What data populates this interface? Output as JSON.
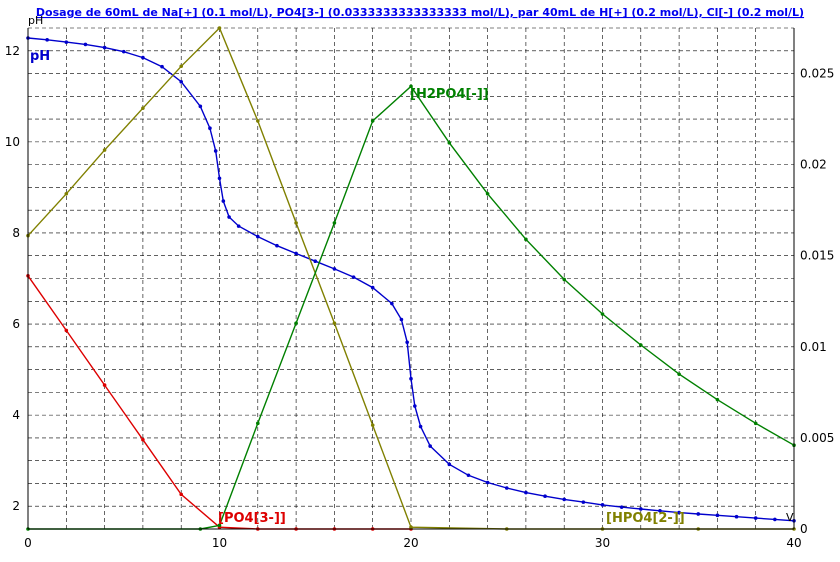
{
  "chart_data": {
    "type": "line",
    "title": "Dosage de 60mL de Na[+] (0.1 mol/L), PO4[3-] (0.0333333333333333 mol/L),  par 40mL  de H[+] (0.2 mol/L), Cl[-] (0.2 mol/L)",
    "xlabel": "V",
    "ylabel": "pH",
    "xlim": [
      0,
      40
    ],
    "ylim_left": [
      1.5,
      12.5
    ],
    "ylim_right": [
      0,
      0.0275
    ],
    "x_ticks": [
      0,
      10,
      20,
      30,
      40
    ],
    "y_left_ticks": [
      2,
      4,
      6,
      8,
      10,
      12
    ],
    "y_right_ticks": [
      0,
      0.005,
      0.01,
      0.015,
      0.02,
      0.025
    ],
    "grid": true,
    "colors": {
      "pH": "#0000cc",
      "PO4[3-]": "#dd0000",
      "HPO4[2-]": "#808000",
      "H2PO4[-]": "#008000",
      "grid": "#000000",
      "title": "#0000ee"
    },
    "series": [
      {
        "name": "pH",
        "axis": "left",
        "x": [
          0,
          1,
          2,
          3,
          4,
          5,
          6,
          7,
          8,
          9,
          9.5,
          9.8,
          10,
          10.2,
          10.5,
          11,
          12,
          13,
          14,
          15,
          16,
          17,
          18,
          19,
          19.5,
          19.8,
          20,
          20.2,
          20.5,
          21,
          22,
          23,
          24,
          25,
          26,
          27,
          28,
          29,
          30,
          31,
          32,
          33,
          34,
          35,
          36,
          37,
          38,
          39,
          40
        ],
        "values": [
          12.28,
          12.24,
          12.19,
          12.14,
          12.07,
          11.98,
          11.85,
          11.65,
          11.32,
          10.78,
          10.3,
          9.8,
          9.2,
          8.7,
          8.35,
          8.15,
          7.92,
          7.72,
          7.55,
          7.38,
          7.21,
          7.03,
          6.8,
          6.45,
          6.1,
          5.6,
          4.8,
          4.2,
          3.75,
          3.32,
          2.92,
          2.68,
          2.52,
          2.4,
          2.3,
          2.22,
          2.15,
          2.09,
          2.03,
          1.98,
          1.94,
          1.9,
          1.86,
          1.83,
          1.8,
          1.77,
          1.74,
          1.71,
          1.68
        ]
      },
      {
        "name": "PO4[3-]",
        "axis": "right",
        "x": [
          0,
          2,
          4,
          6,
          8,
          10,
          12,
          14,
          16,
          18,
          20
        ],
        "values": [
          0.0139,
          0.0109,
          0.0079,
          0.0049,
          0.0019,
          0.0001,
          0.0,
          0.0,
          0.0,
          0.0,
          0.0
        ]
      },
      {
        "name": "HPO4[2-]",
        "axis": "right",
        "x": [
          0,
          2,
          4,
          6,
          8,
          10,
          12,
          14,
          16,
          18,
          20,
          25,
          30,
          35,
          40
        ],
        "values": [
          0.0161,
          0.0184,
          0.0208,
          0.0231,
          0.0254,
          0.0275,
          0.0224,
          0.0168,
          0.0113,
          0.0057,
          0.0001,
          0.0,
          0.0,
          0.0,
          0.0
        ]
      },
      {
        "name": "H2PO4[-]",
        "axis": "right",
        "x": [
          0,
          9,
          10,
          12,
          14,
          16,
          18,
          20,
          22,
          24,
          26,
          28,
          30,
          32,
          34,
          36,
          38,
          40
        ],
        "values": [
          0.0,
          0.0,
          0.0002,
          0.0058,
          0.0113,
          0.0168,
          0.0224,
          0.0243,
          0.0212,
          0.0184,
          0.0159,
          0.0137,
          0.0118,
          0.0101,
          0.0085,
          0.0071,
          0.0058,
          0.0046
        ]
      }
    ],
    "annotations": [
      {
        "text": "pH",
        "series": "pH"
      },
      {
        "text": "[PO4[3-]]",
        "series": "PO4[3-]"
      },
      {
        "text": "[HPO4[2-]]",
        "series": "HPO4[2-]"
      },
      {
        "text": "[H2PO4[-]]",
        "series": "H2PO4[-]"
      }
    ]
  }
}
